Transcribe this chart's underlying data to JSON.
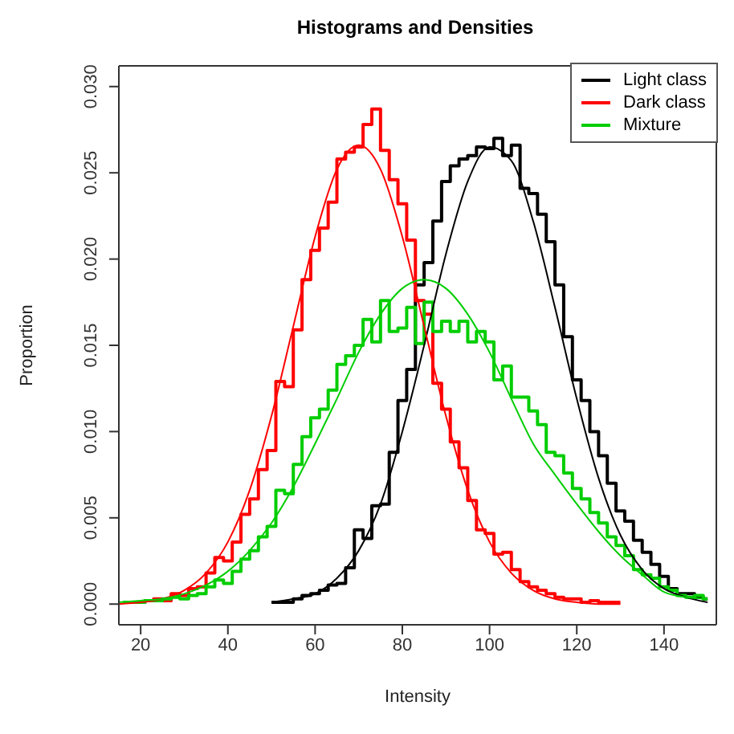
{
  "chart_data": {
    "type": "step",
    "title": "Histograms and Densities",
    "xlabel": "Intensity",
    "ylabel": "Proportion",
    "xlim": [
      15,
      152
    ],
    "xticks": [
      20,
      40,
      60,
      80,
      100,
      120,
      140
    ],
    "ylim": [
      -0.0012,
      0.0312
    ],
    "yticks": [
      {
        "value": 0,
        "label": "0.000"
      },
      {
        "value": 0.005,
        "label": "0.005"
      },
      {
        "value": 0.01,
        "label": "0.010"
      },
      {
        "value": 0.015,
        "label": "0.015"
      },
      {
        "value": 0.02,
        "label": "0.020"
      },
      {
        "value": 0.025,
        "label": "0.025"
      },
      {
        "value": 0.03,
        "label": "0.030"
      }
    ],
    "legend": "top right",
    "series": [
      {
        "name": "Light class",
        "color": "#000000",
        "x": [
          50,
          52,
          54,
          56,
          58,
          60,
          62,
          64,
          66,
          68,
          70,
          72,
          74,
          76,
          78,
          80,
          82,
          84,
          86,
          88,
          90,
          92,
          94,
          96,
          98,
          100,
          102,
          104,
          106,
          108,
          110,
          112,
          114,
          116,
          118,
          120,
          122,
          124,
          126,
          128,
          130,
          132,
          134,
          136,
          138,
          140,
          142,
          144,
          146,
          148,
          150
        ],
        "values": [
          0.0001,
          0.0001,
          0.0001,
          0.0003,
          0.0005,
          0.0006,
          0.0008,
          0.0011,
          0.0012,
          0.0021,
          0.0043,
          0.0038,
          0.0057,
          0.0058,
          0.0088,
          0.0118,
          0.0136,
          0.0185,
          0.0198,
          0.0222,
          0.0245,
          0.0254,
          0.0258,
          0.026,
          0.0265,
          0.0264,
          0.027,
          0.026,
          0.0266,
          0.0241,
          0.0238,
          0.0226,
          0.021,
          0.0185,
          0.0155,
          0.013,
          0.0118,
          0.01,
          0.0086,
          0.007,
          0.0054,
          0.0048,
          0.0037,
          0.003,
          0.0023,
          0.0016,
          0.0009,
          0.0006,
          0.0006,
          0.0004,
          0.0003
        ]
      },
      {
        "name": "Dark class",
        "color": "#ff0000",
        "x": [
          16,
          18,
          20,
          22,
          24,
          26,
          28,
          30,
          32,
          34,
          36,
          38,
          40,
          42,
          44,
          46,
          48,
          50,
          52,
          54,
          56,
          58,
          60,
          62,
          64,
          66,
          68,
          70,
          72,
          74,
          76,
          78,
          80,
          82,
          84,
          86,
          88,
          90,
          92,
          94,
          96,
          98,
          100,
          102,
          104,
          106,
          108,
          110,
          112,
          114,
          116,
          118,
          120,
          122,
          124,
          126,
          128,
          130
        ],
        "values": [
          0.0001,
          0.0001,
          0.0001,
          0.0002,
          0.0003,
          0.0002,
          0.0006,
          0.0005,
          0.0009,
          0.001,
          0.0018,
          0.0027,
          0.0025,
          0.0036,
          0.0052,
          0.0061,
          0.0078,
          0.0089,
          0.0129,
          0.0126,
          0.0159,
          0.0188,
          0.0205,
          0.0218,
          0.0233,
          0.0258,
          0.0262,
          0.0265,
          0.0278,
          0.0287,
          0.0263,
          0.0246,
          0.0232,
          0.0211,
          0.0176,
          0.0168,
          0.0128,
          0.0113,
          0.0094,
          0.0079,
          0.006,
          0.0043,
          0.0041,
          0.0029,
          0.003,
          0.002,
          0.0013,
          0.001,
          0.0008,
          0.0006,
          0.0004,
          0.0003,
          0.0003,
          0.0001,
          0.0002,
          0.0001,
          0.0001,
          0.0001
        ]
      },
      {
        "name": "Mixture",
        "color": "#00cd00",
        "x": [
          16,
          18,
          20,
          22,
          24,
          26,
          28,
          30,
          32,
          34,
          36,
          38,
          40,
          42,
          44,
          46,
          48,
          50,
          52,
          54,
          56,
          58,
          60,
          62,
          64,
          66,
          68,
          70,
          72,
          74,
          76,
          78,
          80,
          82,
          84,
          86,
          88,
          90,
          92,
          94,
          96,
          98,
          100,
          102,
          104,
          106,
          108,
          110,
          112,
          114,
          116,
          118,
          120,
          122,
          124,
          126,
          128,
          130,
          132,
          134,
          136,
          138,
          140,
          142,
          144,
          146,
          148,
          150
        ],
        "values": [
          0.0001,
          0.0001,
          0.0001,
          0.0002,
          0.0002,
          0.0003,
          0.0004,
          0.0003,
          0.0005,
          0.0006,
          0.001,
          0.0014,
          0.0012,
          0.0019,
          0.0026,
          0.0031,
          0.0039,
          0.0045,
          0.0066,
          0.0064,
          0.0081,
          0.0097,
          0.0108,
          0.0113,
          0.0124,
          0.0139,
          0.0144,
          0.015,
          0.0165,
          0.0152,
          0.0176,
          0.0158,
          0.016,
          0.0172,
          0.0151,
          0.0175,
          0.0158,
          0.0164,
          0.0158,
          0.0164,
          0.0152,
          0.0158,
          0.0152,
          0.013,
          0.0138,
          0.012,
          0.012,
          0.0112,
          0.0104,
          0.0088,
          0.0086,
          0.0076,
          0.0067,
          0.0061,
          0.0053,
          0.0047,
          0.0039,
          0.0034,
          0.0028,
          0.002,
          0.0017,
          0.0015,
          0.001,
          0.0008,
          0.0005,
          0.0004,
          0.0005,
          0.0003
        ]
      },
      {
        "type": "line",
        "color": "#000000",
        "x": [
          50,
          55,
          60,
          65,
          70,
          75,
          80,
          85,
          90,
          95,
          100,
          105,
          110,
          115,
          120,
          125,
          130,
          135,
          140,
          145,
          150
        ],
        "values": [
          0.0001,
          0.0003,
          0.0006,
          0.0015,
          0.0031,
          0.0058,
          0.01,
          0.015,
          0.0203,
          0.0245,
          0.0265,
          0.0257,
          0.0222,
          0.0172,
          0.0119,
          0.0073,
          0.004,
          0.002,
          0.0009,
          0.0004,
          0.0001
        ]
      },
      {
        "type": "line",
        "color": "#ff0000",
        "x": [
          15,
          20,
          25,
          30,
          35,
          40,
          45,
          50,
          55,
          60,
          65,
          70,
          75,
          80,
          85,
          90,
          95,
          100,
          105,
          110,
          115,
          120,
          125,
          130
        ],
        "values": [
          0,
          0.0001,
          0.0003,
          0.0008,
          0.0018,
          0.0036,
          0.0066,
          0.0109,
          0.0161,
          0.0213,
          0.0252,
          0.0266,
          0.0252,
          0.0213,
          0.0161,
          0.0109,
          0.0066,
          0.0036,
          0.0018,
          0.0008,
          0.0003,
          0.0001,
          0,
          0
        ]
      },
      {
        "type": "line",
        "color": "#00cd00",
        "x": [
          15,
          20,
          25,
          30,
          35,
          40,
          45,
          50,
          55,
          60,
          65,
          70,
          75,
          80,
          85,
          90,
          95,
          100,
          105,
          110,
          115,
          120,
          125,
          130,
          135,
          140,
          145,
          150
        ],
        "values": [
          0.0001,
          0.0002,
          0.0003,
          0.0006,
          0.0011,
          0.0019,
          0.0031,
          0.0047,
          0.0068,
          0.0093,
          0.0119,
          0.0146,
          0.0168,
          0.0183,
          0.0188,
          0.0183,
          0.0168,
          0.0146,
          0.0119,
          0.0093,
          0.0075,
          0.0058,
          0.0042,
          0.0028,
          0.0017,
          0.0007,
          0.0004,
          0.0003
        ]
      }
    ]
  }
}
